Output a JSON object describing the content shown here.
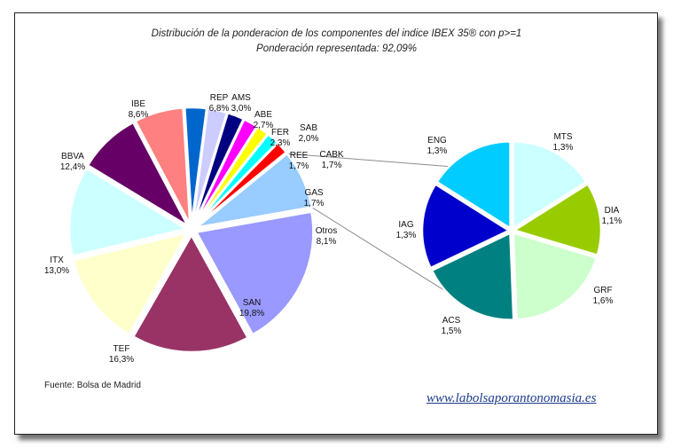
{
  "title": {
    "line1": "Distribución de la ponderacion de los componentes del indice IBEX 35® con p>=1",
    "line2": "Ponderación representada: 92,09%"
  },
  "source": "Fuente: Bolsa de Madrid",
  "website": "www.labolsaporantonomasia.es",
  "chart_data": [
    {
      "type": "pie",
      "slices": [
        {
          "label": "SAN",
          "value": 19.8,
          "display": "19,8%",
          "color": "#9999ff"
        },
        {
          "label": "TEF",
          "value": 16.3,
          "display": "16,3%",
          "color": "#993366"
        },
        {
          "label": "ITX",
          "value": 13.0,
          "display": "13,0%",
          "color": "#ffffcc"
        },
        {
          "label": "BBVA",
          "value": 12.4,
          "display": "12,4%",
          "color": "#ccffff"
        },
        {
          "label": "IBE",
          "value": 8.6,
          "display": "8,6%",
          "color": "#660066"
        },
        {
          "label": "REP",
          "value": 6.8,
          "display": "6,8%",
          "color": "#ff8080"
        },
        {
          "label": "AMS",
          "value": 3.0,
          "display": "3,0%",
          "color": "#0066cc"
        },
        {
          "label": "ABE",
          "value": 2.7,
          "display": "2,7%",
          "color": "#ccccff"
        },
        {
          "label": "FER",
          "value": 2.3,
          "display": "2,3%",
          "color": "#000080"
        },
        {
          "label": "SAB",
          "value": 2.0,
          "display": "2,0%",
          "color": "#ff00ff"
        },
        {
          "label": "REE",
          "value": 1.7,
          "display": "1,7%",
          "color": "#ffff00"
        },
        {
          "label": "CABK",
          "value": 1.7,
          "display": "1,7%",
          "color": "#00ffff"
        },
        {
          "label": "GAS",
          "value": 1.7,
          "display": "1,7%",
          "color": "#ff0000"
        },
        {
          "label": "Otros",
          "value": 8.1,
          "display": "8,1%",
          "color": "#99ccff"
        }
      ]
    },
    {
      "type": "pie",
      "slices": [
        {
          "label": "MTS",
          "value": 1.3,
          "display": "1,3%",
          "color": "#ccffff"
        },
        {
          "label": "DIA",
          "value": 1.1,
          "display": "1,1%",
          "color": "#99cc00"
        },
        {
          "label": "GRF",
          "value": 1.6,
          "display": "1,6%",
          "color": "#ccffcc"
        },
        {
          "label": "ACS",
          "value": 1.5,
          "display": "1,5%",
          "color": "#008080"
        },
        {
          "label": "IAG",
          "value": 1.3,
          "display": "1,3%",
          "color": "#0000cc"
        },
        {
          "label": "ENG",
          "value": 1.3,
          "display": "1,3%",
          "color": "#00ccff"
        }
      ]
    }
  ]
}
